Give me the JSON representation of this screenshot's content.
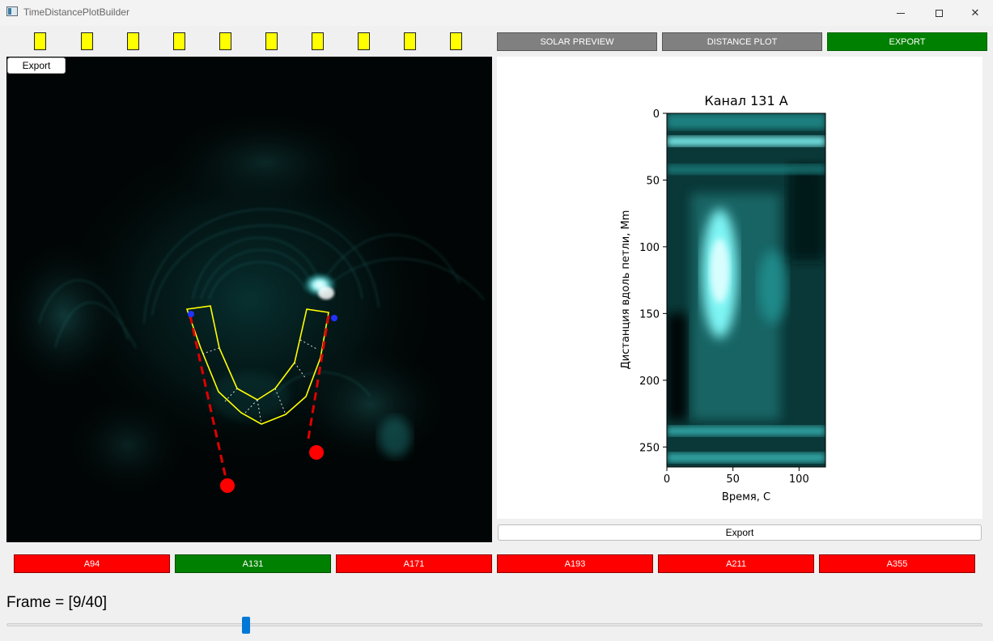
{
  "window": {
    "title": "TimeDistancePlotBuilder"
  },
  "toolbar": {
    "marker_count": 10,
    "solar_preview": "SOLAR PREVIEW",
    "distance_plot": "DISTANCE PLOT",
    "export": "EXPORT"
  },
  "image_panel": {
    "export_label": "Export"
  },
  "plot_panel": {
    "export_label": "Export"
  },
  "chart_data": {
    "type": "heatmap",
    "title": "Канал 131 А",
    "xlabel": "Время, С",
    "ylabel": "Дистанция вдоль петли, Mm",
    "xlim": [
      0,
      120
    ],
    "ylim": [
      265,
      0
    ],
    "xticks": [
      0,
      50,
      100
    ],
    "yticks": [
      0,
      50,
      100,
      150,
      200,
      250
    ],
    "colormap": "black-cyan-white",
    "features": [
      {
        "kind": "hband",
        "y": 21,
        "intensity": 0.85
      },
      {
        "kind": "hband",
        "y": 42,
        "intensity": 0.35
      },
      {
        "kind": "blob",
        "x": 40,
        "y": 120,
        "intensity": 1.0
      },
      {
        "kind": "blob",
        "x": 80,
        "y": 130,
        "intensity": 0.5
      },
      {
        "kind": "hband",
        "y": 238,
        "intensity": 0.55
      },
      {
        "kind": "hband",
        "y": 258,
        "intensity": 0.6
      }
    ]
  },
  "channels": [
    {
      "label": "A94",
      "active": false
    },
    {
      "label": "A131",
      "active": true
    },
    {
      "label": "A171",
      "active": false
    },
    {
      "label": "A193",
      "active": false
    },
    {
      "label": "A211",
      "active": false
    },
    {
      "label": "A355",
      "active": false
    }
  ],
  "frame": {
    "label": "Frame = [9/40]",
    "current": 9,
    "total": 40
  },
  "colors": {
    "active": "#008000",
    "inactive": "#ff0000",
    "neutral": "#808080",
    "marker": "#ffff00",
    "loop": "#ffff00",
    "anchor": "#ff0000"
  }
}
